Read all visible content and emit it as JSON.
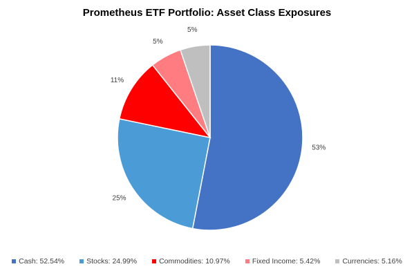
{
  "chart_data": {
    "type": "pie",
    "title": "Prometheus ETF Portfolio: Asset Class Exposures",
    "start_angle_deg": 0,
    "direction": "clockwise",
    "legend_position": "bottom",
    "slices": [
      {
        "label": "Cash",
        "value": 52.54,
        "percent_label": "53%",
        "color": "#4472C4",
        "legend": "Cash: 52.54%"
      },
      {
        "label": "Stocks",
        "value": 24.99,
        "percent_label": "25%",
        "color": "#4A9BD6",
        "legend": "Stocks: 24.99%"
      },
      {
        "label": "Commodities",
        "value": 10.97,
        "percent_label": "11%",
        "color": "#FF0000",
        "legend": "Commodities: 10.97%"
      },
      {
        "label": "Fixed Income",
        "value": 5.42,
        "percent_label": "5%",
        "color": "#FF7C80",
        "legend": "Fixed Income: 5.42%"
      },
      {
        "label": "Currencies",
        "value": 5.16,
        "percent_label": "5%",
        "color": "#BFBFBF",
        "legend": "Currencies: 5.16%"
      }
    ]
  }
}
